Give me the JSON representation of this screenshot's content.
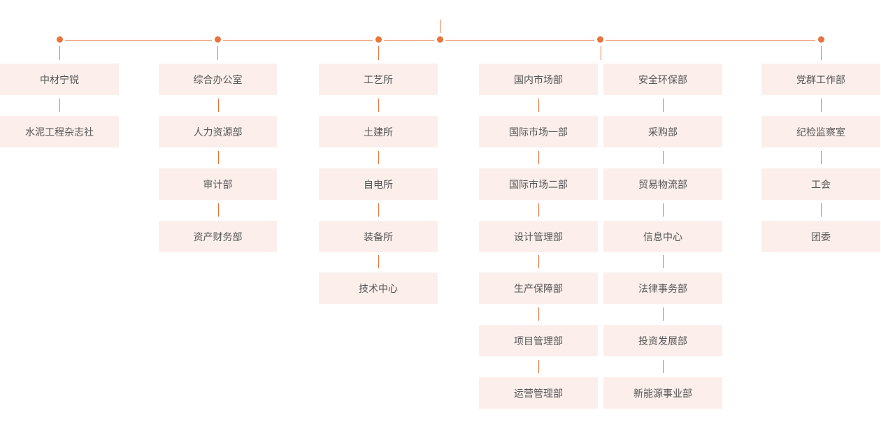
{
  "colors": {
    "accent": "#e8743b",
    "box_background": "#fcefeb",
    "text": "#555555"
  },
  "columns": [
    {
      "items": [
        "中材宁锐",
        "水泥工程杂志社"
      ]
    },
    {
      "items": [
        "综合办公室",
        "人力资源部",
        "审计部",
        "资产财务部"
      ]
    },
    {
      "items": [
        "工艺所",
        "土建所",
        "自电所",
        "装备所",
        "技术中心"
      ]
    },
    {
      "items": [
        "国内市场部",
        "国际市场一部",
        "国际市场二部",
        "设计管理部",
        "生产保障部",
        "项目管理部",
        "运营管理部"
      ]
    },
    {
      "items": [
        "安全环保部",
        "采购部",
        "贸易物流部",
        "信息中心",
        "法律事务部",
        "投资发展部",
        "新能源事业部"
      ]
    },
    {
      "items": [
        "党群工作部",
        "纪检监察室",
        "工会",
        "团委"
      ]
    }
  ]
}
